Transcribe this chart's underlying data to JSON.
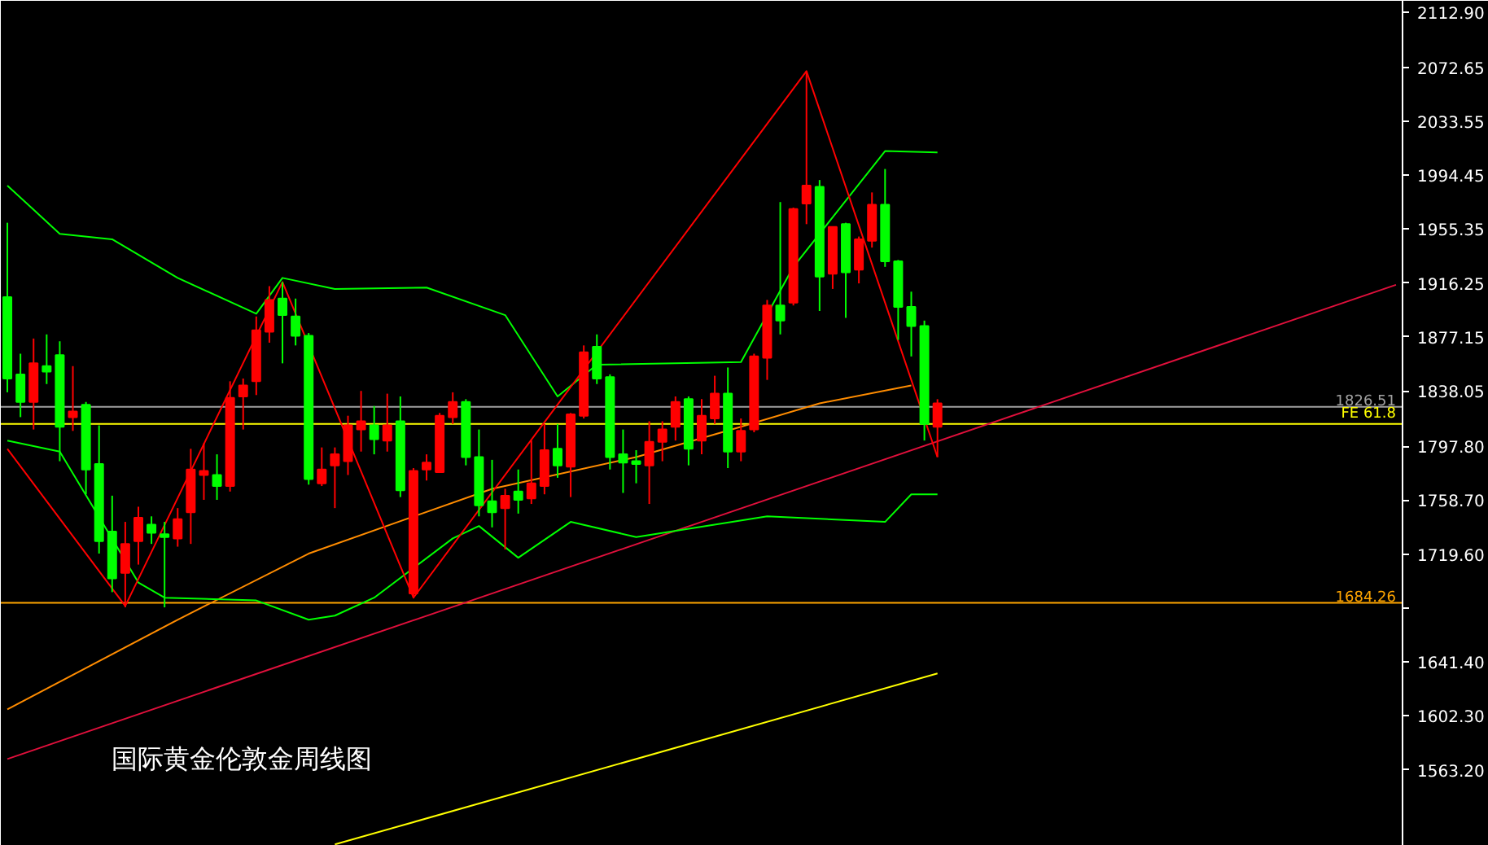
{
  "chart_data": {
    "type": "candlestick",
    "title": "国际黄金伦敦金周线图",
    "categories": [
      null,
      null,
      null,
      null,
      null,
      null,
      null,
      null,
      null,
      null,
      null,
      null,
      null,
      null,
      null,
      null,
      null,
      null,
      null,
      null,
      null,
      null,
      null,
      null,
      null,
      null,
      null,
      null,
      null,
      null,
      null,
      null,
      null,
      null,
      null,
      null,
      null,
      null,
      null,
      null,
      null,
      null,
      null,
      null,
      null,
      null,
      null,
      null,
      null,
      null,
      null,
      null,
      null,
      null,
      null,
      null,
      null,
      null,
      null,
      null,
      null,
      null,
      null,
      null,
      null,
      null,
      null,
      null,
      null,
      null,
      null,
      null,
      null,
      null,
      null,
      null,
      null,
      null,
      null,
      null,
      null,
      null,
      null,
      null,
      null,
      null,
      null,
      null,
      null,
      null,
      null,
      null,
      null,
      null,
      null,
      null,
      null,
      null,
      null,
      null,
      null,
      null,
      null,
      null,
      null,
      null,
      null
    ],
    "ohlc": [
      [
        1847,
        1960,
        1837,
        1906
      ],
      [
        1830,
        1865,
        1819,
        1850
      ],
      [
        1858,
        1876,
        1810,
        1830
      ],
      [
        1852,
        1879,
        1843,
        1856
      ],
      [
        1812,
        1874,
        1787,
        1864
      ],
      [
        1823,
        1856,
        1809,
        1819
      ],
      [
        1781,
        1830,
        1763,
        1828
      ],
      [
        1729,
        1813,
        1720,
        1785
      ],
      [
        1702,
        1762,
        1692,
        1736
      ],
      [
        1727,
        1743,
        1681,
        1706
      ],
      [
        1746,
        1754,
        1712,
        1729
      ],
      [
        1735,
        1747,
        1727,
        1741
      ],
      [
        1732,
        1743,
        1681,
        1734
      ],
      [
        1745,
        1753,
        1725,
        1731
      ],
      [
        1781,
        1796,
        1727,
        1750
      ],
      [
        1780,
        1800,
        1759,
        1777
      ],
      [
        1769,
        1792,
        1759,
        1777
      ],
      [
        1833,
        1845,
        1765,
        1769
      ],
      [
        1842,
        1847,
        1810,
        1834
      ],
      [
        1882,
        1892,
        1835,
        1845
      ],
      [
        1904,
        1914,
        1873,
        1881
      ],
      [
        1893,
        1917,
        1858,
        1905
      ],
      [
        1878,
        1905,
        1871,
        1892
      ],
      [
        1774,
        1880,
        1770,
        1878
      ],
      [
        1781,
        1797,
        1769,
        1771
      ],
      [
        1792,
        1797,
        1753,
        1784
      ],
      [
        1813,
        1820,
        1777,
        1787
      ],
      [
        1816,
        1838,
        1794,
        1810
      ],
      [
        1803,
        1827,
        1792,
        1813
      ],
      [
        1813,
        1836,
        1794,
        1802
      ],
      [
        1766,
        1834,
        1761,
        1816
      ],
      [
        1780,
        1782,
        1688,
        1691
      ],
      [
        1786,
        1792,
        1773,
        1781
      ],
      [
        1820,
        1822,
        1779,
        1779
      ],
      [
        1830,
        1837,
        1814,
        1819
      ],
      [
        1790,
        1832,
        1784,
        1830
      ],
      [
        1755,
        1810,
        1747,
        1790
      ],
      [
        1750,
        1788,
        1739,
        1758
      ],
      [
        1762,
        1767,
        1723,
        1753
      ],
      [
        1759,
        1781,
        1749,
        1765
      ],
      [
        1771,
        1802,
        1756,
        1760
      ],
      [
        1795,
        1814,
        1763,
        1769
      ],
      [
        1784,
        1814,
        1775,
        1796
      ],
      [
        1821,
        1822,
        1761,
        1783
      ],
      [
        1866,
        1871,
        1818,
        1820
      ],
      [
        1847,
        1879,
        1843,
        1870
      ],
      [
        1790,
        1850,
        1781,
        1848
      ],
      [
        1786,
        1810,
        1764,
        1792
      ],
      [
        1785,
        1795,
        1771,
        1787
      ],
      [
        1801,
        1816,
        1756,
        1784
      ],
      [
        1810,
        1816,
        1787,
        1801
      ],
      [
        1830,
        1834,
        1802,
        1812
      ],
      [
        1796,
        1834,
        1784,
        1832
      ],
      [
        1820,
        1832,
        1792,
        1802
      ],
      [
        1836,
        1849,
        1814,
        1818
      ],
      [
        1794,
        1855,
        1782,
        1836
      ],
      [
        1809,
        1818,
        1787,
        1794
      ],
      [
        1863,
        1865,
        1808,
        1810
      ],
      [
        1900,
        1904,
        1846,
        1862
      ],
      [
        1889,
        1975,
        1879,
        1900
      ],
      [
        1970,
        1971,
        1900,
        1902
      ],
      [
        1987,
        2070,
        1959,
        1974
      ],
      [
        1921,
        1991,
        1896,
        1986
      ],
      [
        1957,
        1957,
        1912,
        1923
      ],
      [
        1924,
        1960,
        1891,
        1959
      ],
      [
        1948,
        1950,
        1916,
        1926
      ],
      [
        1973,
        1982,
        1942,
        1947
      ],
      [
        1932,
        1999,
        1928,
        1973
      ],
      [
        1899,
        1933,
        1875,
        1932
      ],
      [
        1885,
        1910,
        1863,
        1899
      ],
      [
        1814,
        1889,
        1802,
        1885
      ],
      [
        1829,
        1832,
        1790,
        1812
      ],
      null,
      null,
      null,
      null,
      null,
      null,
      null,
      null,
      null,
      null,
      null,
      null,
      null,
      null,
      null,
      null,
      null,
      null,
      null,
      null,
      null,
      null,
      null,
      null,
      null,
      null,
      null,
      null,
      null,
      null,
      null,
      null,
      null,
      null,
      null
    ],
    "series": [
      {
        "type": "line",
        "color": "#e0103c",
        "values": [
          1571,
          null,
          null,
          null,
          null,
          null,
          null,
          null,
          null,
          null,
          null,
          null,
          null,
          null,
          null,
          null,
          null,
          null,
          null,
          null,
          null,
          null,
          null,
          null,
          null,
          null,
          null,
          null,
          null,
          null,
          null,
          null,
          null,
          null,
          null,
          null,
          null,
          null,
          null,
          null,
          null,
          null,
          null,
          null,
          null,
          null,
          null,
          null,
          null,
          null,
          null,
          null,
          null,
          null,
          null,
          null,
          null,
          null,
          null,
          null,
          null,
          null,
          null,
          null,
          null,
          null,
          null,
          null,
          null,
          null,
          null,
          null,
          null,
          null,
          null,
          null,
          null,
          null,
          null,
          null,
          null,
          null,
          null,
          null,
          null,
          null,
          null,
          null,
          null,
          null,
          null,
          null,
          null,
          null,
          null,
          null,
          null,
          null,
          null,
          null,
          null,
          null,
          null,
          null,
          null,
          null,
          1915
        ]
      },
      {
        "type": "line",
        "color": "#ffff00",
        "values": [
          null,
          null,
          null,
          null,
          null,
          null,
          null,
          null,
          null,
          null,
          null,
          null,
          null,
          null,
          null,
          null,
          null,
          null,
          null,
          null,
          null,
          null,
          null,
          null,
          null,
          1509,
          null,
          null,
          null,
          null,
          null,
          null,
          null,
          null,
          null,
          null,
          null,
          null,
          null,
          null,
          null,
          null,
          null,
          null,
          null,
          null,
          null,
          null,
          null,
          null,
          null,
          null,
          null,
          null,
          null,
          null,
          null,
          null,
          null,
          null,
          null,
          null,
          null,
          null,
          null,
          null,
          null,
          null,
          null,
          null,
          null,
          1633,
          null,
          null,
          null,
          null,
          null,
          null,
          null,
          null,
          null,
          null,
          null,
          null,
          null,
          null,
          null,
          null,
          null,
          null,
          null,
          null,
          null,
          null,
          null,
          null,
          null,
          null,
          null,
          null,
          null,
          null,
          null,
          null,
          null,
          null,
          null
        ]
      },
      {
        "type": "line",
        "color": "#ff8c00",
        "values": [
          1607,
          null,
          null,
          null,
          null,
          null,
          null,
          null,
          null,
          null,
          null,
          null,
          null,
          1672,
          null,
          null,
          null,
          null,
          null,
          null,
          null,
          null,
          null,
          1720,
          null,
          null,
          null,
          null,
          null,
          null,
          null,
          null,
          null,
          null,
          null,
          null,
          null,
          1767,
          null,
          null,
          null,
          null,
          null,
          null,
          null,
          null,
          null,
          null,
          1790,
          null,
          null,
          null,
          null,
          null,
          null,
          null,
          1812,
          null,
          null,
          null,
          null,
          null,
          1829,
          null,
          null,
          null,
          null,
          null,
          null,
          1842,
          null,
          null,
          null,
          null,
          null,
          null,
          null,
          null,
          null,
          null,
          null,
          null,
          null,
          null,
          null,
          null,
          null,
          null,
          null,
          null,
          null,
          null,
          null,
          null,
          null,
          null,
          null,
          null,
          null,
          null,
          null,
          null,
          null,
          null,
          null,
          null,
          null
        ]
      },
      {
        "type": "line",
        "color": "#00ff00",
        "values": [
          1987,
          null,
          null,
          null,
          1952,
          null,
          null,
          null,
          1948,
          null,
          null,
          null,
          null,
          1920,
          null,
          null,
          null,
          null,
          null,
          1894,
          null,
          1920,
          null,
          null,
          null,
          1912,
          null,
          null,
          null,
          null,
          null,
          null,
          1913,
          null,
          null,
          null,
          null,
          null,
          1893,
          null,
          null,
          null,
          1834,
          null,
          null,
          1857,
          null,
          null,
          null,
          null,
          null,
          null,
          null,
          null,
          null,
          null,
          1859,
          null,
          null,
          null,
          1928,
          null,
          null,
          null,
          null,
          null,
          null,
          2012,
          null,
          null,
          null,
          2011,
          null,
          null,
          null,
          null,
          null,
          null,
          null,
          null,
          null,
          null,
          null,
          null,
          null,
          null,
          null,
          null,
          null,
          null,
          null,
          null,
          null,
          null,
          null,
          null,
          null,
          null,
          null,
          null,
          null,
          null,
          null,
          null,
          null,
          null,
          null
        ]
      },
      {
        "type": "line",
        "color": "#00ff00",
        "values": [
          1802,
          null,
          null,
          null,
          1794,
          null,
          null,
          null,
          null,
          null,
          1699,
          null,
          1688,
          null,
          null,
          null,
          null,
          null,
          null,
          1686,
          null,
          null,
          null,
          1672,
          null,
          1675,
          null,
          null,
          1688,
          null,
          null,
          null,
          null,
          null,
          1731,
          null,
          1740,
          null,
          null,
          1717,
          null,
          null,
          null,
          1743,
          null,
          null,
          null,
          null,
          1732,
          null,
          null,
          null,
          null,
          null,
          null,
          null,
          null,
          null,
          1747,
          null,
          null,
          null,
          null,
          null,
          null,
          null,
          null,
          1743,
          null,
          1763,
          null,
          1763,
          null,
          null,
          null,
          null,
          null,
          null,
          null,
          null,
          null,
          null,
          null,
          null,
          null,
          null,
          null,
          null,
          null,
          null,
          null,
          null,
          null,
          null,
          null,
          null,
          null,
          null,
          null,
          null,
          null,
          null,
          null,
          null,
          null,
          null,
          null
        ]
      },
      {
        "type": "line",
        "color": "#ff0000",
        "values": [
          1796,
          null,
          null,
          null,
          null,
          null,
          null,
          null,
          null,
          1682,
          null,
          null,
          null,
          null,
          null,
          null,
          null,
          null,
          null,
          null,
          null,
          1917,
          null,
          null,
          null,
          null,
          null,
          null,
          null,
          null,
          null,
          1688,
          null,
          null,
          null,
          null,
          null,
          null,
          null,
          null,
          null,
          null,
          null,
          null,
          null,
          null,
          null,
          null,
          null,
          null,
          null,
          null,
          null,
          null,
          null,
          null,
          null,
          null,
          null,
          null,
          null,
          2070,
          null,
          null,
          null,
          null,
          null,
          null,
          null,
          null,
          null,
          1790,
          null,
          null,
          null,
          null,
          null,
          null,
          null,
          null,
          null,
          null,
          null,
          null,
          null,
          null,
          null,
          null,
          null,
          null,
          null,
          null,
          null,
          null,
          null,
          null,
          null,
          null,
          null,
          null,
          null,
          null,
          null,
          null,
          null,
          null,
          null
        ]
      }
    ],
    "ylim": [
      1508,
      2121
    ],
    "yticks": [
      {
        "value": 2112.9,
        "label": "2112.90"
      },
      {
        "value": 2072.65,
        "label": "2072.65"
      },
      {
        "value": 2033.55,
        "label": "2033.55"
      },
      {
        "value": 1994.45,
        "label": "1994.45"
      },
      {
        "value": 1955.35,
        "label": "1955.35"
      },
      {
        "value": 1916.25,
        "label": "1916.25"
      },
      {
        "value": 1877.15,
        "label": "1877.15"
      },
      {
        "value": 1838.05,
        "label": "1838.05"
      },
      {
        "value": 1797.8,
        "label": "1797.80"
      },
      {
        "value": 1758.7,
        "label": "1758.70"
      },
      {
        "value": 1719.6,
        "label": "1719.60"
      },
      {
        "value": 1680.5,
        "label": null
      },
      {
        "value": 1641.4,
        "label": "1641.40"
      },
      {
        "value": 1602.3,
        "label": "1602.30"
      },
      {
        "value": 1563.2,
        "label": "1563.20"
      }
    ],
    "ref_lines": [
      {
        "axis": "y",
        "value": 1826.51,
        "label": "1826.51",
        "color": "#a0a0a0"
      },
      {
        "axis": "y",
        "value": 1814,
        "label": "FE 61.8",
        "color": "#ffff00"
      },
      {
        "axis": "y",
        "value": 1684.26,
        "label": "1684.26",
        "color": "#ffa500"
      }
    ],
    "tick_labels": "y",
    "grid": false
  }
}
